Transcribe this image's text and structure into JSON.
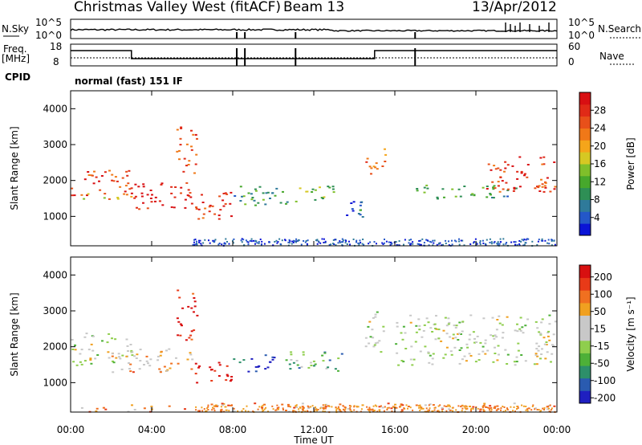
{
  "header": {
    "station": "Christmas Valley West (fitACF)",
    "beam": "Beam 13",
    "date": "13/Apr/2012"
  },
  "noise_panel": {
    "left_label": "N.Sky",
    "right_label": "N.Search",
    "left_ticks": [
      "10^5",
      "10^0"
    ],
    "right_ticks": [
      "10^5",
      "10^0"
    ]
  },
  "freq_panel": {
    "left_label_1": "Freq.",
    "left_label_2": "[MHz]",
    "right_label": "Nave",
    "left_ticks": [
      "18",
      "8"
    ],
    "right_ticks": [
      "60",
      "0"
    ]
  },
  "cpid": {
    "label": "CPID",
    "mode": "normal (fast) 151 IF"
  },
  "chart_data": [
    {
      "type": "heatmap",
      "title": "",
      "xlabel": "Time UT",
      "ylabel": "Slant Range [km]",
      "x_ticks": [
        "00:00",
        "04:00",
        "08:00",
        "12:00",
        "16:00",
        "20:00",
        "00:00"
      ],
      "x_range_hours": [
        0,
        24
      ],
      "y_ticks": [
        1000,
        2000,
        3000,
        4000
      ],
      "ylim": [
        180,
        4500
      ],
      "colorbar": {
        "label": "Power [dB]",
        "ticks": [
          "4",
          "8",
          "12",
          "16",
          "20",
          "24",
          "28"
        ],
        "colors": [
          "#0a14d6",
          "#2457c8",
          "#2f7a9a",
          "#2e8f55",
          "#47a82c",
          "#7fbf2a",
          "#d6c823",
          "#f5a51a",
          "#f07818",
          "#e8501a",
          "#e02a17",
          "#d80f12"
        ]
      },
      "blobs": [
        {
          "t0": 0.0,
          "t1": 3.0,
          "r0": 1600,
          "r1": 2300,
          "level": 0.85
        },
        {
          "t0": 0.3,
          "t1": 3.0,
          "r0": 1500,
          "r1": 1700,
          "level": 0.6
        },
        {
          "t0": 3.0,
          "t1": 6.0,
          "r0": 1200,
          "r1": 2000,
          "level": 0.95
        },
        {
          "t0": 5.2,
          "t1": 6.2,
          "r0": 2200,
          "r1": 3600,
          "level": 0.8
        },
        {
          "t0": 6.0,
          "t1": 8.0,
          "r0": 900,
          "r1": 1700,
          "level": 0.9
        },
        {
          "t0": 8.0,
          "t1": 11.0,
          "r0": 1300,
          "r1": 1900,
          "level": 0.3
        },
        {
          "t0": 11.0,
          "t1": 13.0,
          "r0": 1400,
          "r1": 1900,
          "level": 0.4
        },
        {
          "t0": 13.5,
          "t1": 14.8,
          "r0": 900,
          "r1": 1500,
          "level": 0.2
        },
        {
          "t0": 14.5,
          "t1": 15.5,
          "r0": 2200,
          "r1": 3000,
          "level": 0.7
        },
        {
          "t0": 17.0,
          "t1": 22.0,
          "r0": 1500,
          "r1": 1900,
          "level": 0.3
        },
        {
          "t0": 20.5,
          "t1": 24.0,
          "r0": 1700,
          "r1": 2700,
          "level": 0.85
        }
      ]
    },
    {
      "type": "heatmap",
      "title": "",
      "xlabel": "Time UT",
      "ylabel": "Slant Range [km]",
      "x_ticks": [
        "00:00",
        "04:00",
        "08:00",
        "12:00",
        "16:00",
        "20:00",
        "00:00"
      ],
      "x_range_hours": [
        0,
        24
      ],
      "y_ticks": [
        1000,
        2000,
        3000,
        4000
      ],
      "ylim": [
        180,
        4500
      ],
      "colorbar": {
        "label": "Velocity [m s⁻¹]",
        "ticks": [
          "200",
          "100",
          "50",
          "15",
          "-15",
          "-50",
          "-100",
          "-200"
        ],
        "colors": [
          "#1f1fc0",
          "#2a5bb0",
          "#2d8f6a",
          "#4db038",
          "#8fce4d",
          "#c8c8c8",
          "#c8c8c8",
          "#f0a020",
          "#f07020",
          "#e83a18",
          "#d81010"
        ]
      },
      "blobs": [
        {
          "t0": 0.0,
          "t1": 3.0,
          "r0": 1500,
          "r1": 2400,
          "level": 0.5
        },
        {
          "t0": 2.0,
          "t1": 6.0,
          "r0": 1300,
          "r1": 2000,
          "level": 0.65
        },
        {
          "t0": 5.2,
          "t1": 6.2,
          "r0": 2200,
          "r1": 3600,
          "level": 0.95
        },
        {
          "t0": 6.0,
          "t1": 8.0,
          "r0": 1000,
          "r1": 1600,
          "level": 0.95
        },
        {
          "t0": 8.0,
          "t1": 10.0,
          "r0": 1300,
          "r1": 1800,
          "level": 0.05
        },
        {
          "t0": 10.5,
          "t1": 13.5,
          "r0": 1300,
          "r1": 1900,
          "level": 0.3
        },
        {
          "t0": 14.5,
          "t1": 15.5,
          "r0": 1800,
          "r1": 3000,
          "level": 0.5
        },
        {
          "t0": 16.0,
          "t1": 24.0,
          "r0": 1500,
          "r1": 2900,
          "level": 0.5
        },
        {
          "t0": 0.0,
          "t1": 24.0,
          "r0": 200,
          "r1": 450,
          "level": 0.72
        }
      ]
    }
  ]
}
